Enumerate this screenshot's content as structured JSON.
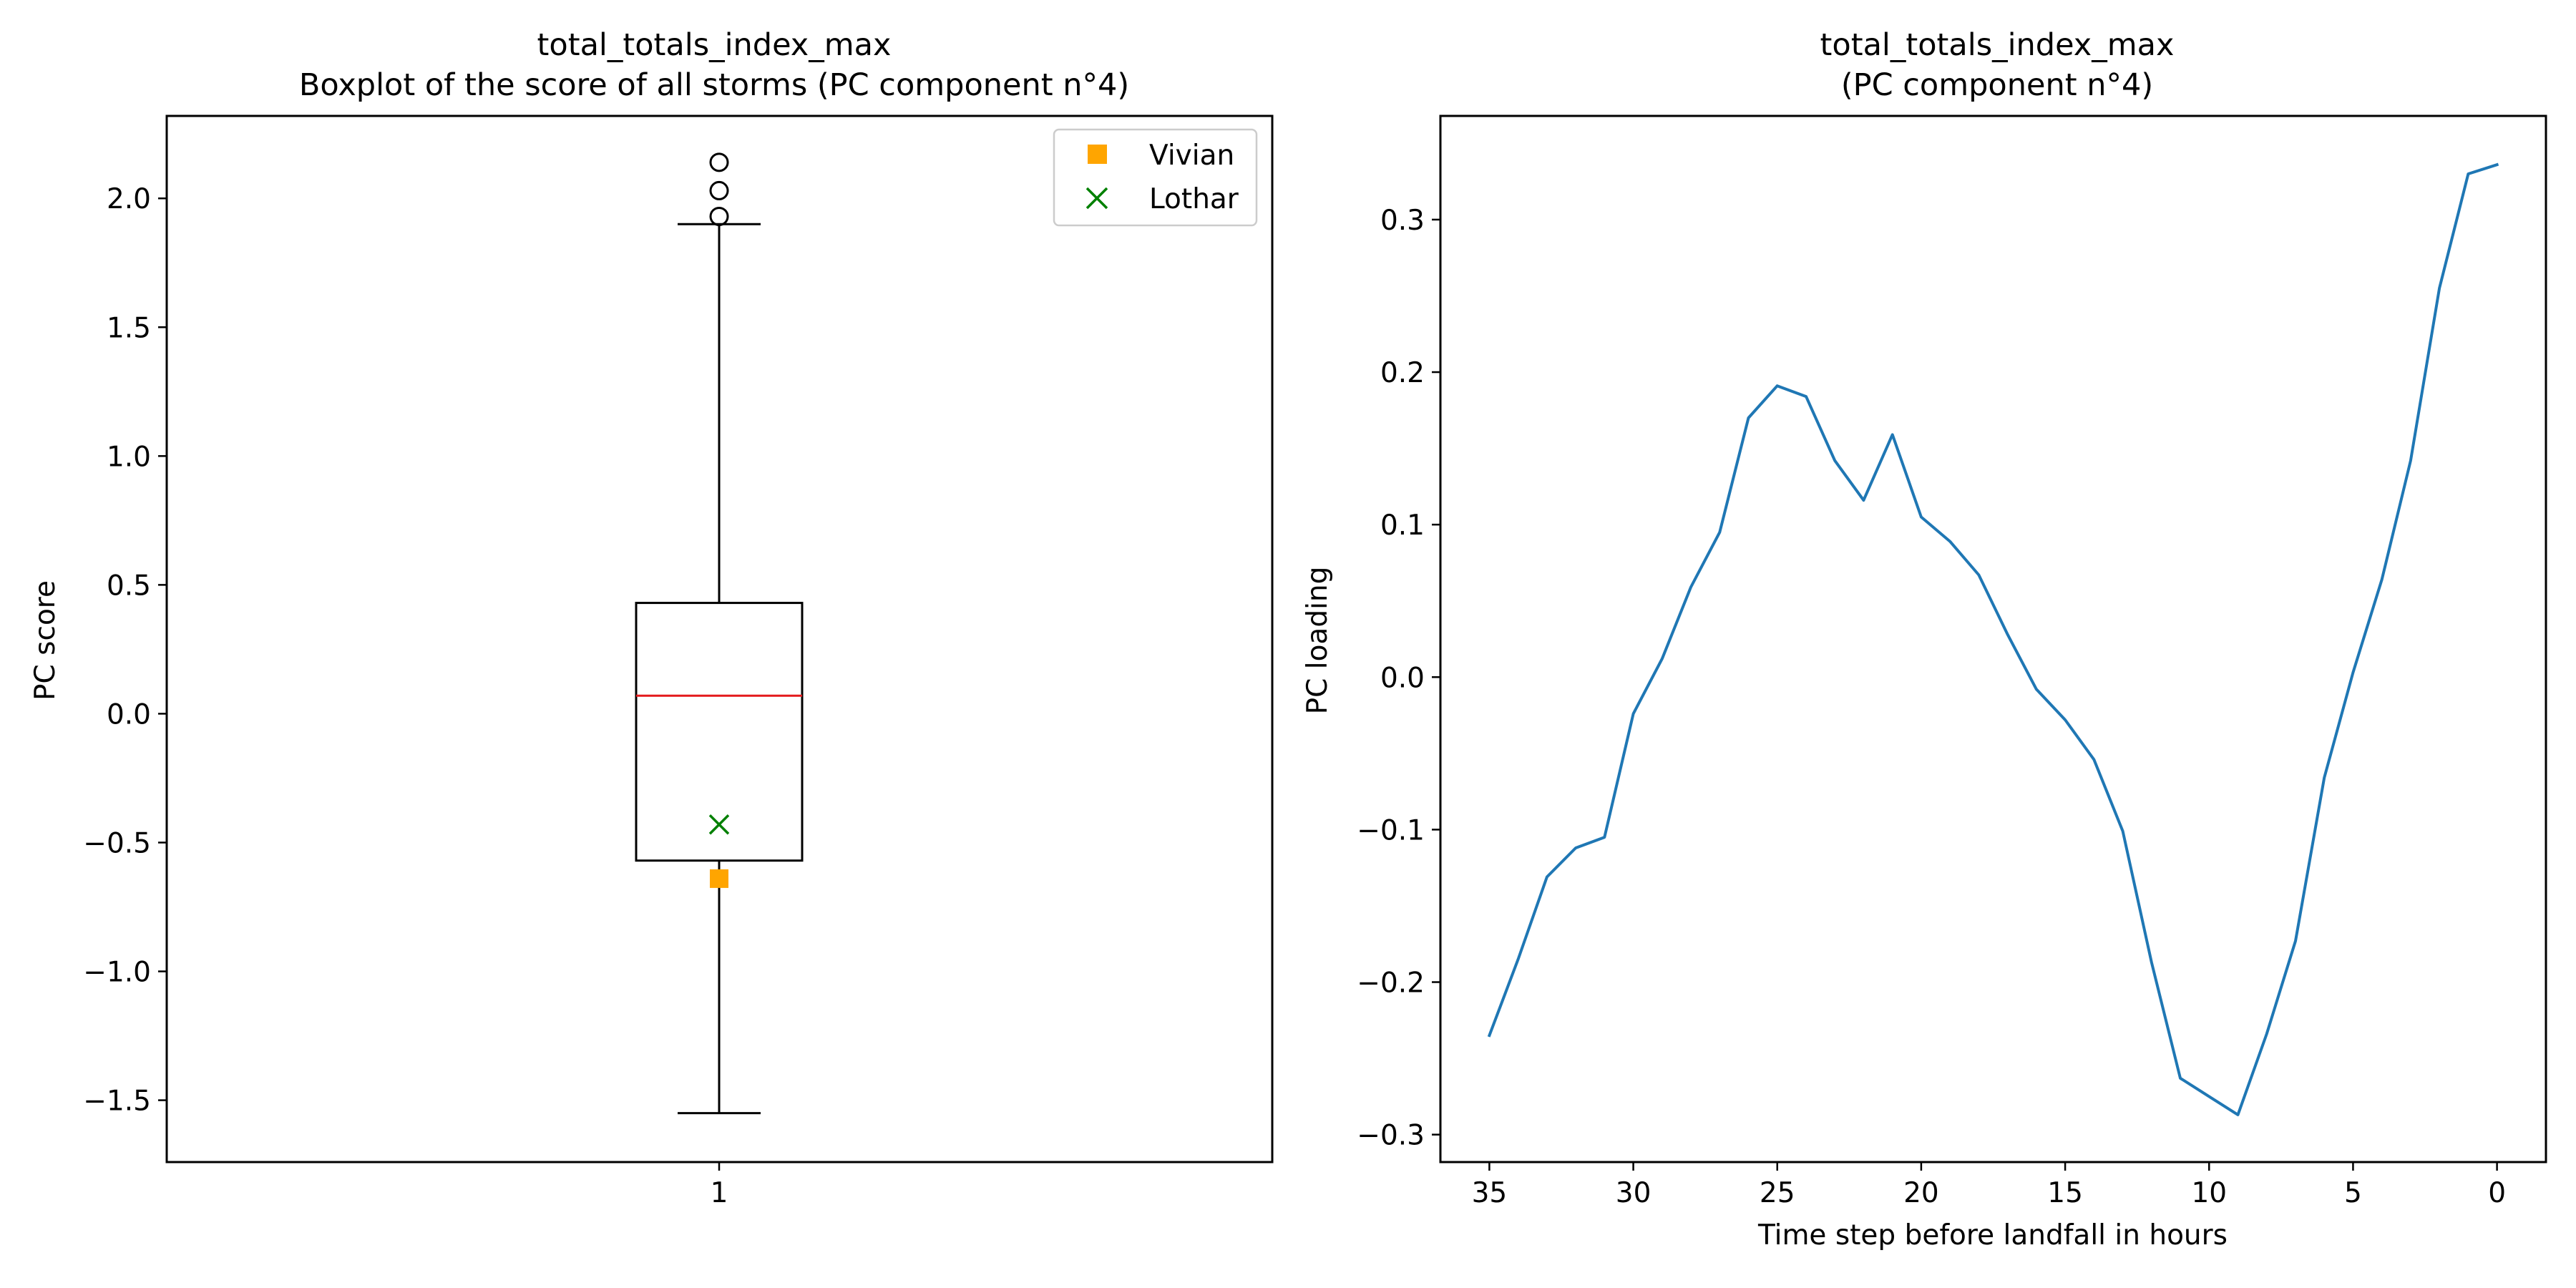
{
  "figure": {
    "left_panel": {
      "title_line1": "total_totals_index_max",
      "title_line2": "Boxplot of the score of all storms (PC component n°4)",
      "ylabel": "PC score"
    },
    "right_panel": {
      "title_line1": "total_totals_index_max",
      "title_line2": "(PC component n°4)",
      "ylabel": "PC loading",
      "xlabel": "Time step before landfall in hours"
    }
  },
  "chart_data": [
    {
      "type": "box",
      "title": "total_totals_index_max\nBoxplot of the score of all storms (PC component n°4)",
      "ylabel": "PC score",
      "xlabel": "",
      "categories": [
        "1"
      ],
      "ylim": [
        -1.74,
        2.32
      ],
      "yticks": [
        -1.5,
        -1.0,
        -0.5,
        0.0,
        0.5,
        1.0,
        1.5,
        2.0
      ],
      "ytick_labels": [
        "−1.5",
        "−1.0",
        "−0.5",
        "0.0",
        "0.5",
        "1.0",
        "1.5",
        "2.0"
      ],
      "box": {
        "whisker_low": -1.55,
        "q1": -0.57,
        "median": 0.07,
        "q3": 0.43,
        "whisker_high": 1.9,
        "outliers": [
          1.93,
          2.03,
          2.14
        ]
      },
      "median_color": "#e41a1c",
      "markers": [
        {
          "name": "Vivian",
          "value": -0.64,
          "symbol": "square",
          "color": "#ffa500"
        },
        {
          "name": "Lothar",
          "value": -0.43,
          "symbol": "x",
          "color": "#008000"
        }
      ],
      "legend": {
        "position": "upper right",
        "entries": [
          "Vivian",
          "Lothar"
        ]
      },
      "grid": false
    },
    {
      "type": "line",
      "title": "total_totals_index_max\n(PC component n°4)",
      "xlabel": "Time step before landfall in hours",
      "ylabel": "PC loading",
      "x_inverted": true,
      "xlim": [
        36.7,
        -1.7
      ],
      "ylim": [
        -0.318,
        0.368
      ],
      "xticks": [
        35,
        30,
        25,
        20,
        15,
        10,
        5,
        0
      ],
      "yticks": [
        -0.3,
        -0.2,
        -0.1,
        0.0,
        0.1,
        0.2,
        0.3
      ],
      "ytick_labels": [
        "−0.3",
        "−0.2",
        "−0.1",
        "0.0",
        "0.1",
        "0.2",
        "0.3"
      ],
      "grid": false,
      "series": [
        {
          "color": "#1f77b4",
          "x": [
            35,
            34,
            33,
            32,
            31,
            30,
            29,
            28,
            27,
            26,
            25,
            24,
            23,
            22,
            21,
            20,
            19,
            18,
            17,
            16,
            15,
            14,
            13,
            12,
            11,
            10,
            9,
            8,
            7,
            6,
            5,
            4,
            3,
            2,
            1,
            0
          ],
          "y": [
            -0.235,
            -0.185,
            -0.131,
            -0.112,
            -0.105,
            -0.024,
            0.012,
            0.059,
            0.095,
            0.17,
            0.191,
            0.184,
            0.142,
            0.116,
            0.159,
            0.105,
            0.089,
            0.067,
            0.028,
            -0.008,
            -0.028,
            -0.054,
            -0.101,
            -0.187,
            -0.263,
            -0.275,
            -0.287,
            -0.234,
            -0.173,
            -0.066,
            0.003,
            0.064,
            0.142,
            0.255,
            0.33,
            0.336
          ]
        }
      ]
    }
  ]
}
